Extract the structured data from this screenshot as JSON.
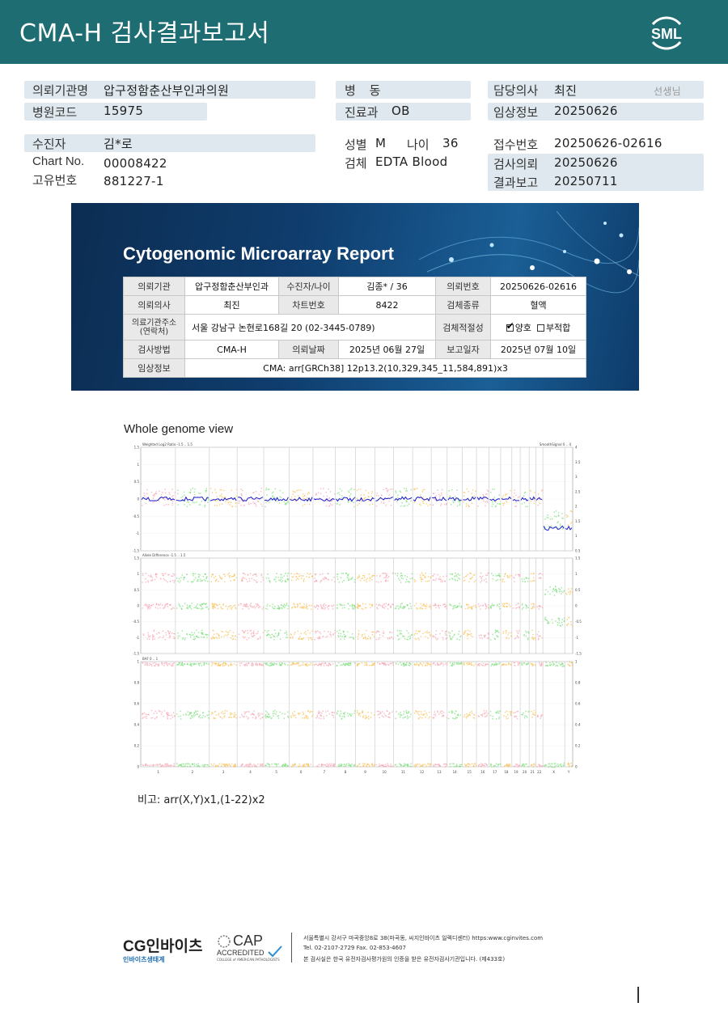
{
  "header": {
    "title": "CMA-H 검사결과보고서",
    "logo_text": "SML",
    "color": "#1e6d73"
  },
  "info": {
    "institution_label": "의뢰기관명",
    "institution_value": "압구정함춘산부인과의원",
    "code_label": "병원코드",
    "code_value": "15975",
    "ward_label": "병 동",
    "dept_label": "진료과",
    "dept_value": "OB",
    "doctor_label": "담당의사",
    "doctor_value": "최진",
    "doctor_suffix": "선생님",
    "clinical_label": "임상정보",
    "clinical_value": "20250626",
    "patient_label": "수진자",
    "patient_value": "김*로",
    "chart_label": "Chart No.",
    "chart_value": "00008422",
    "uid_label": "고유번호",
    "uid_value": "881227-1",
    "sex_label": "성별",
    "sex_value": "M",
    "age_label": "나이",
    "age_value": "36",
    "specimen_label": "검체",
    "specimen_value": "EDTA Blood",
    "receipt_label": "접수번호",
    "receipt_value": "20250626-02616",
    "request_label": "검사의뢰",
    "request_value": "20250626",
    "report_label": "결과보고",
    "report_value": "20250711"
  },
  "banner": {
    "title": "Cytogenomic Microarray Report",
    "r1": {
      "inst_h": "의뢰기관",
      "inst_v": "압구정함춘산부인과",
      "pat_h": "수진자/나이",
      "pat_v": "김종* / 36",
      "no_h": "의뢰번호",
      "no_v": "20250626-02616"
    },
    "r2": {
      "doc_h": "의뢰의사",
      "doc_v": "최진",
      "chart_h": "차트번호",
      "chart_v": "8422",
      "spec_h": "검체종류",
      "spec_v": "혈액"
    },
    "r3": {
      "addr_h1": "의료기관주소",
      "addr_h2": "(연락처)",
      "addr_v": "서울 강남구 논현로168길 20 (02-3445-0789)",
      "fit_h": "검체적절성",
      "good": "양호",
      "bad": "부적합"
    },
    "r4": {
      "method_h": "검사방법",
      "method_v": "CMA-H",
      "date_h": "의뢰날짜",
      "date_v": "2025년 06월 27일",
      "rep_h": "보고일자",
      "rep_v": "2025년 07월 10일"
    },
    "r5": {
      "clin_h": "임상정보",
      "clin_v": "CMA: arr[GRCh38] 12p13.2(10,329,345_11,584,891)x3"
    }
  },
  "genome": {
    "label": "Whole genome view",
    "panel1_title": "Weighted Log2 Ratio -1.5 .. 1.5",
    "panel1_right": "SmoothSignal 0 .. 4",
    "panel2_title": "Allele Difference -1.5 .. 1.5",
    "panel3_title": "BAF 0 .. 1",
    "p1_left_ticks": [
      "1.5",
      "1",
      "0.5",
      "0",
      "-0.5",
      "-1",
      "-1.5"
    ],
    "p1_right_ticks": [
      "4",
      "3.5",
      "3",
      "2.5",
      "2",
      "1.5",
      "1",
      "0.5"
    ],
    "p2_left_ticks": [
      "1.5",
      "1",
      "0.5",
      "0",
      "-0.5",
      "-1",
      "-1.5"
    ],
    "p2_right_ticks": [
      "1.5",
      "1",
      "0.5",
      "0",
      "-0.5",
      "-1",
      "-1.5"
    ],
    "p3_left_ticks": [
      "1",
      "0.8",
      "0.6",
      "0.4",
      "0.2",
      "0"
    ],
    "p3_right_ticks": [
      "1",
      "0.8",
      "0.6",
      "0.4",
      "0.2",
      "0"
    ],
    "chromosomes": [
      "1",
      "2",
      "3",
      "4",
      "5",
      "6",
      "7",
      "8",
      "9",
      "10",
      "11",
      "12",
      "13",
      "14",
      "15",
      "16",
      "17",
      "18",
      "19",
      "20",
      "21",
      "22",
      "X",
      "Y"
    ],
    "colors": {
      "pink": "#f7a8b4",
      "green": "#7fe07f",
      "orange": "#f9c25a",
      "signal": "#1a1acc"
    }
  },
  "remark": "비고: arr(X,Y)x1,(1-22)x2",
  "footer": {
    "cg_logo": "CG인바이츠",
    "cg_sub": "인바이츠생태계",
    "cap_title": "CAP",
    "cap_sub": "ACCREDITED",
    "cap_sub2": "COLLEGE of AMERICAN PATHOLOGISTS",
    "line1": "서울특별시 강서구 마곡중앙8로 38(마곡동, 씨지인바이츠 일렉디센터)  https:www.cginvites.com",
    "line2": "Tel. 02-2107-2729   Fax. 02-853-4607",
    "line3": "본 검사실은 한국 유전자검사평가원의 인증을 받은 유전자검사기관입니다. (제433호)"
  }
}
